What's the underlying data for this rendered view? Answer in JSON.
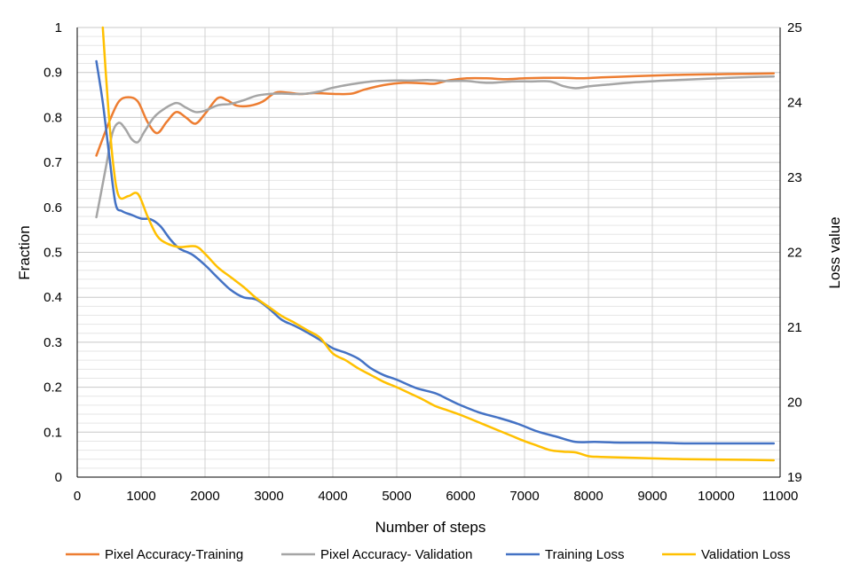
{
  "chart_data": {
    "type": "line",
    "title": "",
    "xlabel": "Number of steps",
    "ylabel_left": "Fraction",
    "ylabel_right": "Loss value",
    "xlim": [
      0,
      11000
    ],
    "ylim_left": [
      0,
      1
    ],
    "ylim_right": [
      19,
      25
    ],
    "x_ticks": [
      "0",
      "1000",
      "2000",
      "3000",
      "4000",
      "5000",
      "6000",
      "7000",
      "8000",
      "9000",
      "10000",
      "11000"
    ],
    "y_left_ticks": [
      "0",
      "0.1",
      "0.2",
      "0.3",
      "0.4",
      "0.5",
      "0.6",
      "0.7",
      "0.8",
      "0.9",
      "1"
    ],
    "y_right_ticks": [
      "19",
      "20",
      "21",
      "22",
      "23",
      "24",
      "25"
    ],
    "grid": true,
    "legend_position": "bottom",
    "series": [
      {
        "name": "Pixel Accuracy-Training",
        "axis": "left",
        "color": "#ED7D31",
        "points": [
          [
            300,
            0.715
          ],
          [
            500,
            0.79
          ],
          [
            650,
            0.835
          ],
          [
            800,
            0.845
          ],
          [
            950,
            0.835
          ],
          [
            1100,
            0.79
          ],
          [
            1250,
            0.765
          ],
          [
            1400,
            0.79
          ],
          [
            1550,
            0.812
          ],
          [
            1700,
            0.8
          ],
          [
            1850,
            0.786
          ],
          [
            2000,
            0.808
          ],
          [
            2200,
            0.843
          ],
          [
            2350,
            0.838
          ],
          [
            2500,
            0.826
          ],
          [
            2700,
            0.826
          ],
          [
            2900,
            0.835
          ],
          [
            3100,
            0.855
          ],
          [
            3300,
            0.855
          ],
          [
            3500,
            0.852
          ],
          [
            3700,
            0.854
          ],
          [
            3900,
            0.853
          ],
          [
            4100,
            0.852
          ],
          [
            4300,
            0.853
          ],
          [
            4500,
            0.862
          ],
          [
            4800,
            0.872
          ],
          [
            5100,
            0.877
          ],
          [
            5400,
            0.876
          ],
          [
            5600,
            0.875
          ],
          [
            5800,
            0.882
          ],
          [
            6100,
            0.887
          ],
          [
            6400,
            0.887
          ],
          [
            6700,
            0.885
          ],
          [
            7000,
            0.887
          ],
          [
            7300,
            0.888
          ],
          [
            7600,
            0.888
          ],
          [
            7900,
            0.887
          ],
          [
            8200,
            0.889
          ],
          [
            8600,
            0.891
          ],
          [
            9000,
            0.893
          ],
          [
            9500,
            0.895
          ],
          [
            10000,
            0.896
          ],
          [
            10500,
            0.897
          ],
          [
            10900,
            0.898
          ]
        ]
      },
      {
        "name": "Pixel Accuracy- Validation",
        "axis": "left",
        "color": "#A5A5A5",
        "points": [
          [
            300,
            0.578
          ],
          [
            450,
            0.69
          ],
          [
            550,
            0.765
          ],
          [
            650,
            0.788
          ],
          [
            750,
            0.775
          ],
          [
            850,
            0.752
          ],
          [
            950,
            0.745
          ],
          [
            1050,
            0.768
          ],
          [
            1200,
            0.8
          ],
          [
            1350,
            0.818
          ],
          [
            1550,
            0.832
          ],
          [
            1700,
            0.822
          ],
          [
            1850,
            0.812
          ],
          [
            2000,
            0.815
          ],
          [
            2200,
            0.827
          ],
          [
            2400,
            0.83
          ],
          [
            2600,
            0.838
          ],
          [
            2800,
            0.848
          ],
          [
            3000,
            0.852
          ],
          [
            3200,
            0.853
          ],
          [
            3400,
            0.852
          ],
          [
            3600,
            0.853
          ],
          [
            3800,
            0.858
          ],
          [
            4000,
            0.866
          ],
          [
            4300,
            0.874
          ],
          [
            4600,
            0.88
          ],
          [
            4900,
            0.882
          ],
          [
            5200,
            0.882
          ],
          [
            5500,
            0.883
          ],
          [
            5800,
            0.881
          ],
          [
            6100,
            0.881
          ],
          [
            6300,
            0.878
          ],
          [
            6500,
            0.877
          ],
          [
            6800,
            0.88
          ],
          [
            7100,
            0.88
          ],
          [
            7400,
            0.88
          ],
          [
            7600,
            0.87
          ],
          [
            7800,
            0.865
          ],
          [
            8000,
            0.869
          ],
          [
            8300,
            0.873
          ],
          [
            8700,
            0.878
          ],
          [
            9200,
            0.882
          ],
          [
            9700,
            0.885
          ],
          [
            10200,
            0.888
          ],
          [
            10600,
            0.89
          ],
          [
            10900,
            0.891
          ]
        ]
      },
      {
        "name": "Training Loss",
        "axis": "right",
        "color": "#4472C4",
        "points": [
          [
            300,
            24.55
          ],
          [
            400,
            24.0
          ],
          [
            500,
            23.3
          ],
          [
            600,
            22.65
          ],
          [
            700,
            22.55
          ],
          [
            850,
            22.5
          ],
          [
            1000,
            22.45
          ],
          [
            1150,
            22.44
          ],
          [
            1300,
            22.35
          ],
          [
            1450,
            22.18
          ],
          [
            1600,
            22.05
          ],
          [
            1800,
            21.97
          ],
          [
            2000,
            21.83
          ],
          [
            2200,
            21.66
          ],
          [
            2400,
            21.5
          ],
          [
            2600,
            21.4
          ],
          [
            2800,
            21.37
          ],
          [
            3000,
            21.25
          ],
          [
            3200,
            21.1
          ],
          [
            3400,
            21.02
          ],
          [
            3600,
            20.93
          ],
          [
            3800,
            20.83
          ],
          [
            4000,
            20.72
          ],
          [
            4200,
            20.66
          ],
          [
            4400,
            20.58
          ],
          [
            4600,
            20.45
          ],
          [
            4800,
            20.36
          ],
          [
            5000,
            20.3
          ],
          [
            5300,
            20.19
          ],
          [
            5600,
            20.12
          ],
          [
            5800,
            20.04
          ],
          [
            6000,
            19.96
          ],
          [
            6300,
            19.86
          ],
          [
            6600,
            19.79
          ],
          [
            6900,
            19.71
          ],
          [
            7200,
            19.61
          ],
          [
            7500,
            19.54
          ],
          [
            7800,
            19.47
          ],
          [
            8100,
            19.47
          ],
          [
            8500,
            19.46
          ],
          [
            9000,
            19.46
          ],
          [
            9500,
            19.45
          ],
          [
            10000,
            19.45
          ],
          [
            10500,
            19.45
          ],
          [
            10900,
            19.45
          ]
        ]
      },
      {
        "name": "Validation Loss",
        "axis": "right",
        "color": "#FFC000",
        "points": [
          [
            400,
            25.0
          ],
          [
            480,
            24.0
          ],
          [
            560,
            23.2
          ],
          [
            650,
            22.75
          ],
          [
            800,
            22.75
          ],
          [
            950,
            22.78
          ],
          [
            1100,
            22.48
          ],
          [
            1250,
            22.22
          ],
          [
            1400,
            22.12
          ],
          [
            1600,
            22.07
          ],
          [
            1850,
            22.08
          ],
          [
            2000,
            21.98
          ],
          [
            2200,
            21.8
          ],
          [
            2400,
            21.67
          ],
          [
            2600,
            21.54
          ],
          [
            2800,
            21.39
          ],
          [
            3000,
            21.27
          ],
          [
            3200,
            21.15
          ],
          [
            3400,
            21.06
          ],
          [
            3600,
            20.96
          ],
          [
            3800,
            20.86
          ],
          [
            4000,
            20.65
          ],
          [
            4200,
            20.56
          ],
          [
            4400,
            20.45
          ],
          [
            4600,
            20.36
          ],
          [
            4800,
            20.27
          ],
          [
            5000,
            20.2
          ],
          [
            5200,
            20.12
          ],
          [
            5400,
            20.04
          ],
          [
            5600,
            19.95
          ],
          [
            5800,
            19.89
          ],
          [
            6000,
            19.83
          ],
          [
            6200,
            19.76
          ],
          [
            6400,
            19.69
          ],
          [
            6600,
            19.62
          ],
          [
            6800,
            19.55
          ],
          [
            7000,
            19.48
          ],
          [
            7200,
            19.42
          ],
          [
            7400,
            19.36
          ],
          [
            7600,
            19.34
          ],
          [
            7800,
            19.33
          ],
          [
            8000,
            19.28
          ],
          [
            8200,
            19.27
          ],
          [
            8600,
            19.26
          ],
          [
            9000,
            19.25
          ],
          [
            9500,
            19.24
          ],
          [
            10000,
            19.235
          ],
          [
            10500,
            19.23
          ],
          [
            10900,
            19.225
          ]
        ]
      }
    ]
  }
}
